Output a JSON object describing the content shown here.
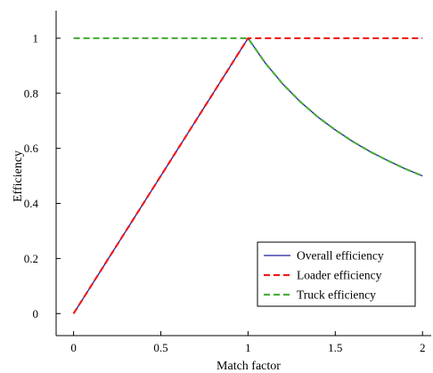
{
  "chart_data": {
    "type": "line",
    "xlabel": "Match factor",
    "ylabel": "Efficiency",
    "xlim": [
      -0.1,
      2.05
    ],
    "ylim": [
      -0.08,
      1.1
    ],
    "xticks": [
      0,
      0.5,
      1,
      1.5,
      2
    ],
    "yticks": [
      0,
      0.2,
      0.4,
      0.6,
      0.8,
      1
    ],
    "xtick_labels": [
      "0",
      "0.5",
      "1",
      "1.5",
      "2"
    ],
    "ytick_labels": [
      "0",
      "0.2",
      "0.4",
      "0.6",
      "0.8",
      "1"
    ],
    "grid": false,
    "legend_position": "bottom-right",
    "series": [
      {
        "name": "Overall efficiency",
        "color": "#1f1fa0",
        "style": "solid",
        "x": [
          0,
          0.25,
          0.5,
          0.75,
          1,
          1.1,
          1.2,
          1.3,
          1.4,
          1.5,
          1.6,
          1.7,
          1.8,
          1.9,
          2
        ],
        "y": [
          0,
          0.25,
          0.5,
          0.75,
          1,
          0.909,
          0.833,
          0.769,
          0.714,
          0.667,
          0.625,
          0.588,
          0.556,
          0.526,
          0.5
        ]
      },
      {
        "name": "Loader efficiency",
        "color": "#ee1c1c",
        "style": "dashed",
        "x": [
          0,
          0.25,
          0.5,
          0.75,
          1,
          1.5,
          2
        ],
        "y": [
          0,
          0.25,
          0.5,
          0.75,
          1,
          1,
          1
        ]
      },
      {
        "name": "Truck efficiency",
        "color": "#4cae3c",
        "style": "dashed",
        "x": [
          0,
          0.5,
          1,
          1.1,
          1.2,
          1.3,
          1.4,
          1.5,
          1.6,
          1.7,
          1.8,
          1.9,
          2
        ],
        "y": [
          1,
          1,
          1,
          0.909,
          0.833,
          0.769,
          0.714,
          0.667,
          0.625,
          0.588,
          0.556,
          0.526,
          0.5
        ]
      }
    ]
  }
}
